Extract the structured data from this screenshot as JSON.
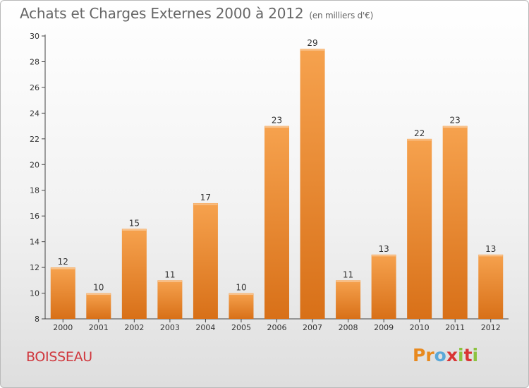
{
  "header": {
    "title": "Achats et Charges Externes 2000 à 2012",
    "unit": "(en milliers d'€)"
  },
  "footer": {
    "commune": "BOISSEAU",
    "logo_letters": [
      "P",
      "r",
      "o",
      "x",
      "i",
      "t",
      "i"
    ],
    "logo_colors": [
      "#e8891e",
      "#e8891e",
      "#5aa8d8",
      "#d93434",
      "#8cc33f",
      "#d93434",
      "#8cc33f"
    ]
  },
  "chart_data": {
    "type": "bar",
    "title": "Achats et Charges Externes 2000 à 2012",
    "subtitle": "(en milliers d'€)",
    "xlabel": "",
    "ylabel": "",
    "categories": [
      "2000",
      "2001",
      "2002",
      "2003",
      "2004",
      "2005",
      "2006",
      "2007",
      "2008",
      "2009",
      "2010",
      "2011",
      "2012"
    ],
    "values": [
      12,
      10,
      15,
      11,
      17,
      10,
      23,
      29,
      11,
      13,
      22,
      23,
      13
    ],
    "ylim": [
      8,
      30
    ],
    "yticks": [
      8,
      10,
      12,
      14,
      16,
      18,
      20,
      22,
      24,
      26,
      28,
      30
    ],
    "grid": false,
    "bar_color_top": "#f6a24e",
    "bar_color_bottom": "#d87018"
  }
}
